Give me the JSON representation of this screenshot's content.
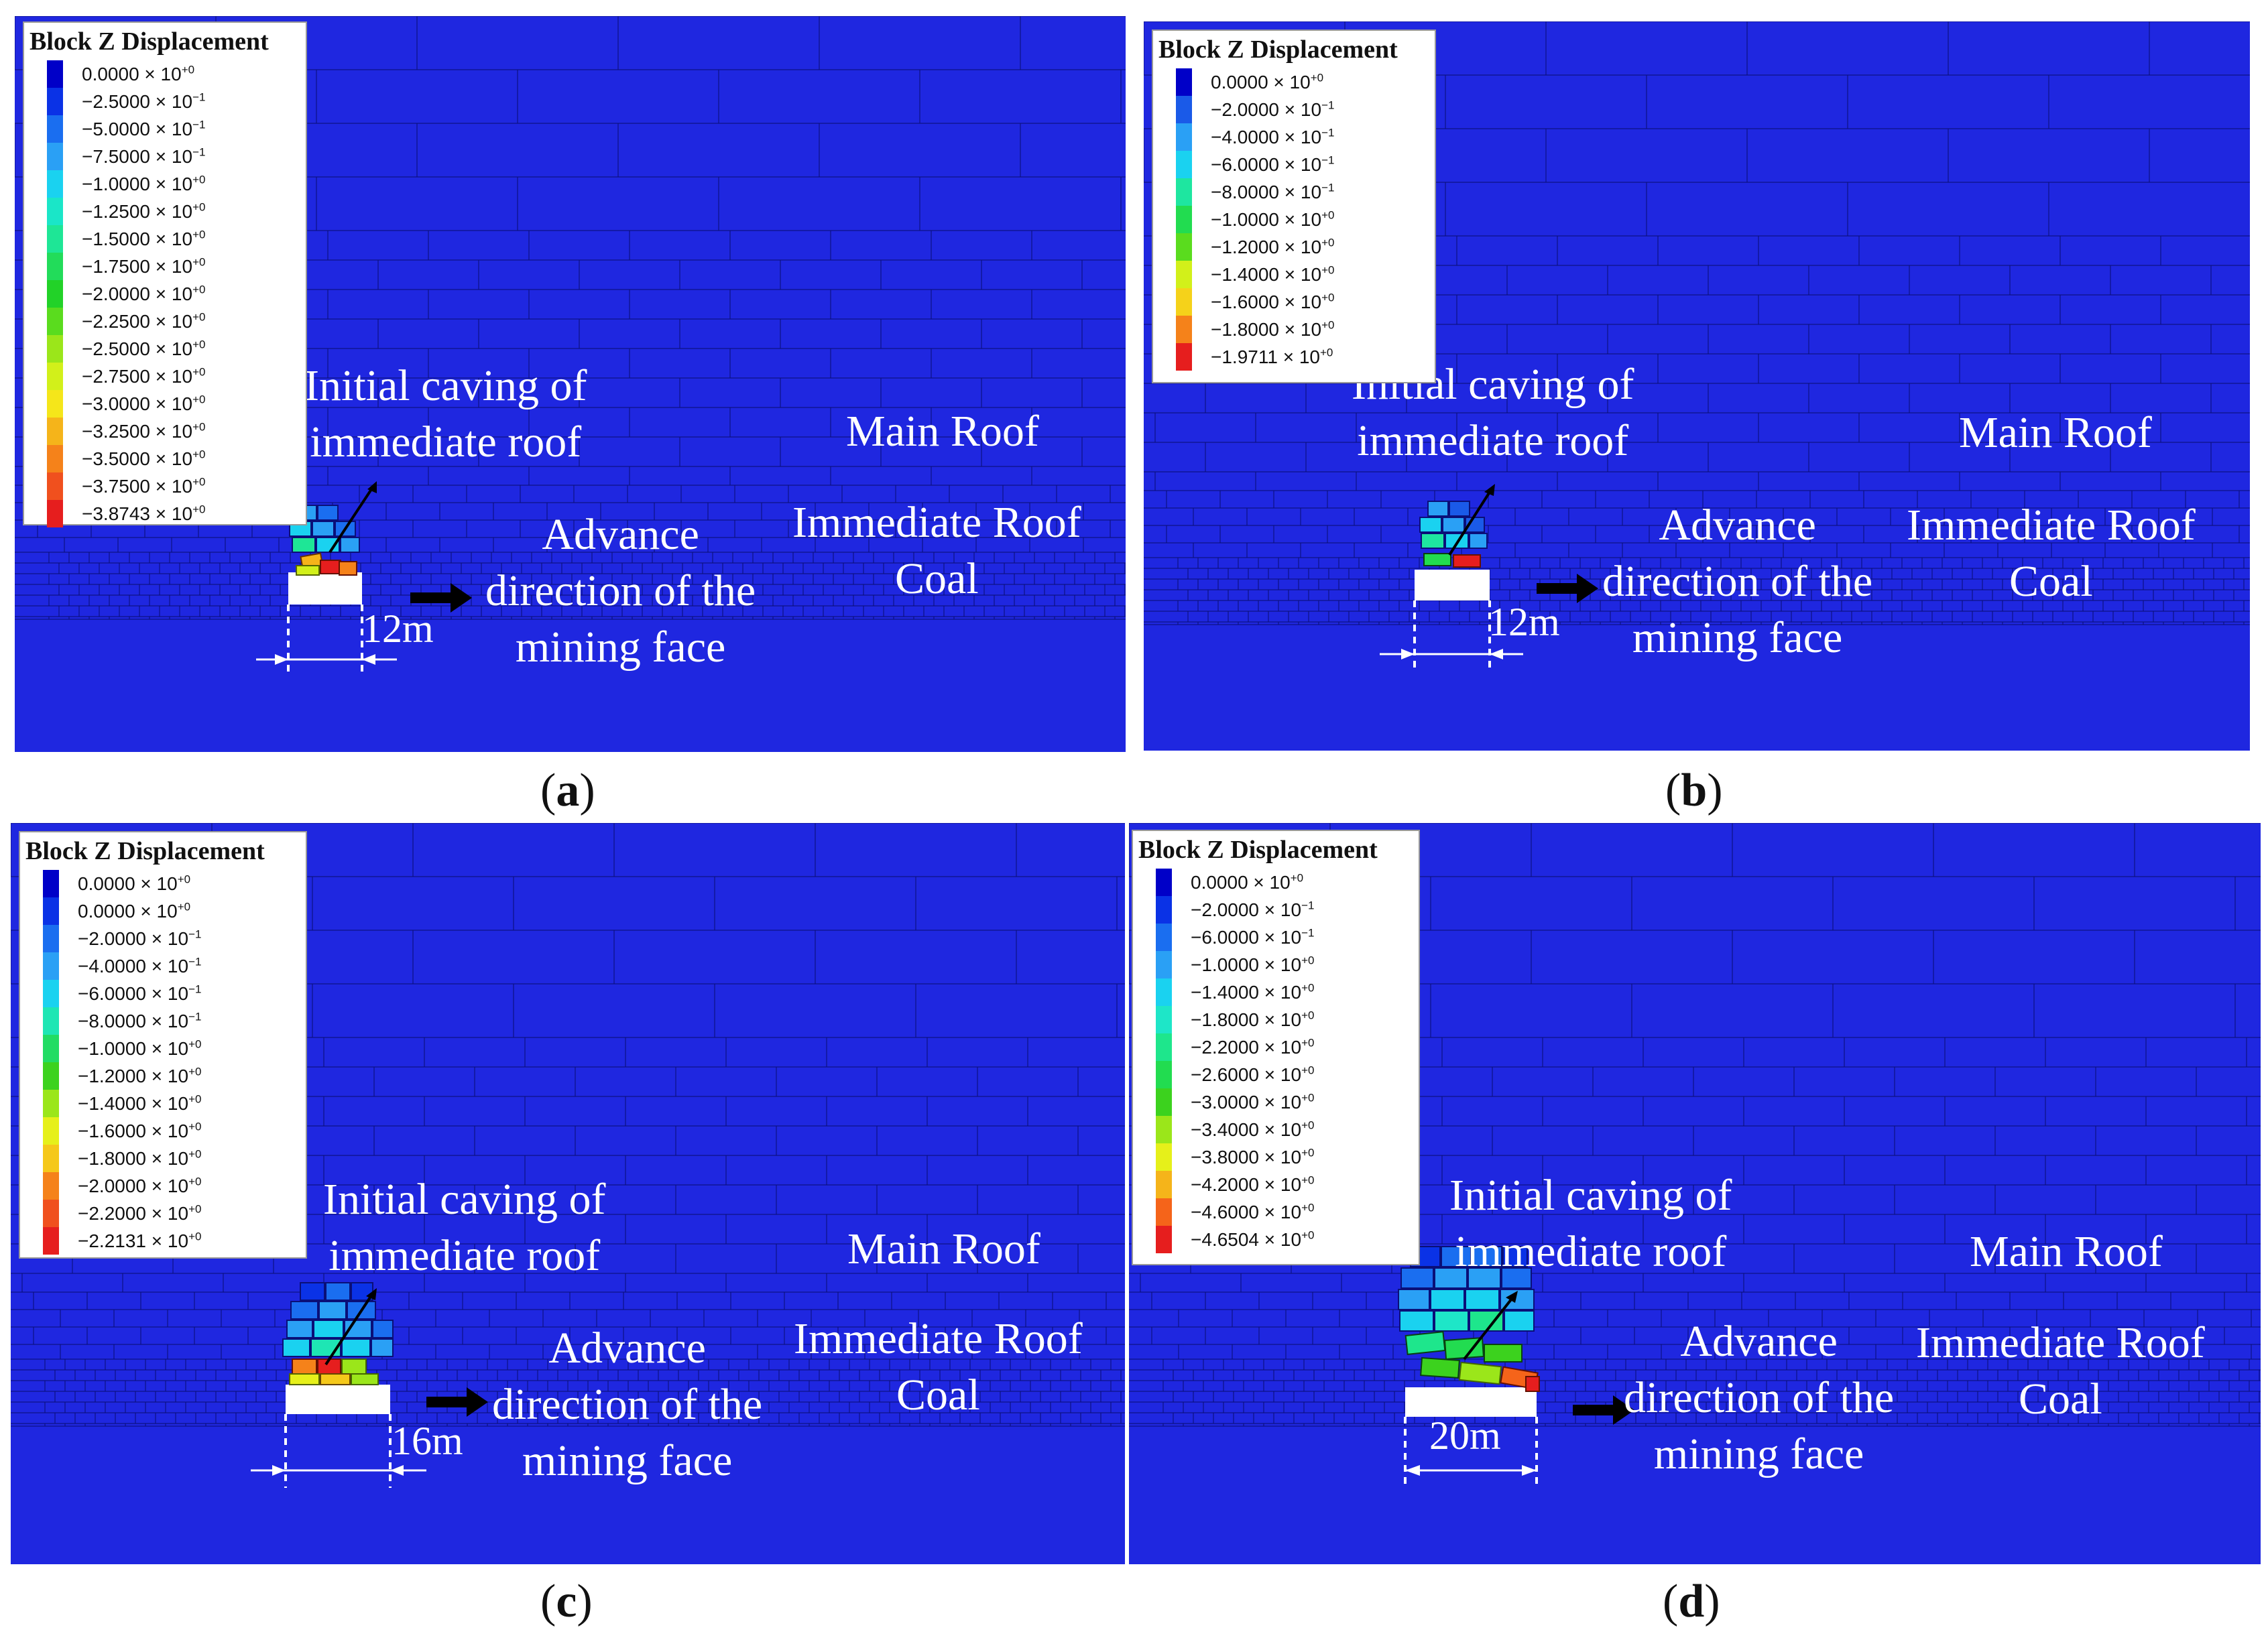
{
  "panels": [
    {
      "id": "a",
      "caption_open": "(",
      "caption_letter": "a",
      "caption_close": ")",
      "legend": {
        "title": "Block Z Displacement",
        "entries": [
          {
            "mantissa": "0.0000",
            "exponent": "+0",
            "color": "#0000c8"
          },
          {
            "mantissa": "−2.5000",
            "exponent": "−1",
            "color": "#0a32e6"
          },
          {
            "mantissa": "−5.0000",
            "exponent": "−1",
            "color": "#1a6ef0"
          },
          {
            "mantissa": "−7.5000",
            "exponent": "−1",
            "color": "#2aa0f5"
          },
          {
            "mantissa": "−1.0000",
            "exponent": "+0",
            "color": "#1ad2f0"
          },
          {
            "mantissa": "−1.2500",
            "exponent": "+0",
            "color": "#1ae6c8"
          },
          {
            "mantissa": "−1.5000",
            "exponent": "+0",
            "color": "#1ee696"
          },
          {
            "mantissa": "−1.7500",
            "exponent": "+0",
            "color": "#22dc5a"
          },
          {
            "mantissa": "−2.0000",
            "exponent": "+0",
            "color": "#22d228"
          },
          {
            "mantissa": "−2.2500",
            "exponent": "+0",
            "color": "#5adc1e"
          },
          {
            "mantissa": "−2.5000",
            "exponent": "+0",
            "color": "#9be61a"
          },
          {
            "mantissa": "−2.7500",
            "exponent": "+0",
            "color": "#d2f01a"
          },
          {
            "mantissa": "−3.0000",
            "exponent": "+0",
            "color": "#f5e61a"
          },
          {
            "mantissa": "−3.2500",
            "exponent": "+0",
            "color": "#f5b41a"
          },
          {
            "mantissa": "−3.5000",
            "exponent": "+0",
            "color": "#f5821a"
          },
          {
            "mantissa": "−3.7500",
            "exponent": "+0",
            "color": "#f0501e"
          },
          {
            "mantissa": "−3.8743",
            "exponent": "+0",
            "color": "#e61e1e"
          }
        ]
      },
      "labels": {
        "caving_line1": "Initial caving of",
        "caving_line2": "immediate roof",
        "main_roof": "Main Roof",
        "advance_line1": "Advance",
        "advance_line2": "direction of the",
        "advance_line3": "mining face",
        "immediate_roof": "Immediate Roof",
        "coal": "Coal",
        "dimension": "12m"
      }
    },
    {
      "id": "b",
      "caption_open": "(",
      "caption_letter": "b",
      "caption_close": ")",
      "legend": {
        "title": "Block Z Displacement",
        "entries": [
          {
            "mantissa": "0.0000",
            "exponent": "+0",
            "color": "#0000c8"
          },
          {
            "mantissa": "−2.0000",
            "exponent": "−1",
            "color": "#1a5ae8"
          },
          {
            "mantissa": "−4.0000",
            "exponent": "−1",
            "color": "#2aa0f5"
          },
          {
            "mantissa": "−6.0000",
            "exponent": "−1",
            "color": "#1ad2f0"
          },
          {
            "mantissa": "−8.0000",
            "exponent": "−1",
            "color": "#1ee6a0"
          },
          {
            "mantissa": "−1.0000",
            "exponent": "+0",
            "color": "#22dc50"
          },
          {
            "mantissa": "−1.2000",
            "exponent": "+0",
            "color": "#5adc1e"
          },
          {
            "mantissa": "−1.4000",
            "exponent": "+0",
            "color": "#d2f01a"
          },
          {
            "mantissa": "−1.6000",
            "exponent": "+0",
            "color": "#f5d21a"
          },
          {
            "mantissa": "−1.8000",
            "exponent": "+0",
            "color": "#f5821a"
          },
          {
            "mantissa": "−1.9711",
            "exponent": "+0",
            "color": "#e61e1e"
          }
        ]
      },
      "labels": {
        "caving_line1": "Initial caving of",
        "caving_line2": "immediate roof",
        "main_roof": "Main Roof",
        "advance_line1": "Advance",
        "advance_line2": "direction of the",
        "advance_line3": "mining face",
        "immediate_roof": "Immediate Roof",
        "coal": "Coal",
        "dimension": "12m"
      }
    },
    {
      "id": "c",
      "caption_open": "(",
      "caption_letter": "c",
      "caption_close": ")",
      "legend": {
        "title": "Block Z Displacement",
        "entries": [
          {
            "mantissa": "0.0000",
            "exponent": "+0",
            "color": "#0000c8"
          },
          {
            "mantissa": "0.0000",
            "exponent": "+0",
            "color": "#0a32e6"
          },
          {
            "mantissa": "−2.0000",
            "exponent": "−1",
            "color": "#1a6ef0"
          },
          {
            "mantissa": "−4.0000",
            "exponent": "−1",
            "color": "#2aa0f5"
          },
          {
            "mantissa": "−6.0000",
            "exponent": "−1",
            "color": "#1ad2f0"
          },
          {
            "mantissa": "−8.0000",
            "exponent": "−1",
            "color": "#1ee6b4"
          },
          {
            "mantissa": "−1.0000",
            "exponent": "+0",
            "color": "#22dc64"
          },
          {
            "mantissa": "−1.2000",
            "exponent": "+0",
            "color": "#3cd21e"
          },
          {
            "mantissa": "−1.4000",
            "exponent": "+0",
            "color": "#9be61a"
          },
          {
            "mantissa": "−1.6000",
            "exponent": "+0",
            "color": "#e6f01a"
          },
          {
            "mantissa": "−1.8000",
            "exponent": "+0",
            "color": "#f5c81a"
          },
          {
            "mantissa": "−2.0000",
            "exponent": "+0",
            "color": "#f5821a"
          },
          {
            "mantissa": "−2.2000",
            "exponent": "+0",
            "color": "#f0501e"
          },
          {
            "mantissa": "−2.2131",
            "exponent": "+0",
            "color": "#e61e1e"
          }
        ]
      },
      "labels": {
        "caving_line1": "Initial caving of",
        "caving_line2": "immediate roof",
        "main_roof": "Main Roof",
        "advance_line1": "Advance",
        "advance_line2": "direction of the",
        "advance_line3": "mining face",
        "immediate_roof": "Immediate Roof",
        "coal": "Coal",
        "dimension": "16m"
      }
    },
    {
      "id": "d",
      "caption_open": "(",
      "caption_letter": "d",
      "caption_close": ")",
      "legend": {
        "title": "Block Z Displacement",
        "entries": [
          {
            "mantissa": "0.0000",
            "exponent": "+0",
            "color": "#0000c8"
          },
          {
            "mantissa": "−2.0000",
            "exponent": "−1",
            "color": "#0a32e6"
          },
          {
            "mantissa": "−6.0000",
            "exponent": "−1",
            "color": "#1a6ef0"
          },
          {
            "mantissa": "−1.0000",
            "exponent": "+0",
            "color": "#2aa0f5"
          },
          {
            "mantissa": "−1.4000",
            "exponent": "+0",
            "color": "#1ad2f0"
          },
          {
            "mantissa": "−1.8000",
            "exponent": "+0",
            "color": "#1ee6c8"
          },
          {
            "mantissa": "−2.2000",
            "exponent": "+0",
            "color": "#1ee68c"
          },
          {
            "mantissa": "−2.6000",
            "exponent": "+0",
            "color": "#22dc50"
          },
          {
            "mantissa": "−3.0000",
            "exponent": "+0",
            "color": "#3cd21e"
          },
          {
            "mantissa": "−3.4000",
            "exponent": "+0",
            "color": "#9be61a"
          },
          {
            "mantissa": "−3.8000",
            "exponent": "+0",
            "color": "#e6f01a"
          },
          {
            "mantissa": "−4.2000",
            "exponent": "+0",
            "color": "#f5b41a"
          },
          {
            "mantissa": "−4.6000",
            "exponent": "+0",
            "color": "#f5641a"
          },
          {
            "mantissa": "−4.6504",
            "exponent": "+0",
            "color": "#e61e1e"
          }
        ]
      },
      "labels": {
        "caving_line1": "Initial caving of",
        "caving_line2": "immediate roof",
        "main_roof": "Main Roof",
        "advance_line1": "Advance",
        "advance_line2": "direction of the",
        "advance_line3": "mining face",
        "immediate_roof": "Immediate Roof",
        "coal": "Coal",
        "dimension": "20m"
      }
    }
  ],
  "colors": {
    "model_background": "#1f27e0",
    "block_edges": "#0a0f78",
    "annotation_text": "#ffffff"
  }
}
